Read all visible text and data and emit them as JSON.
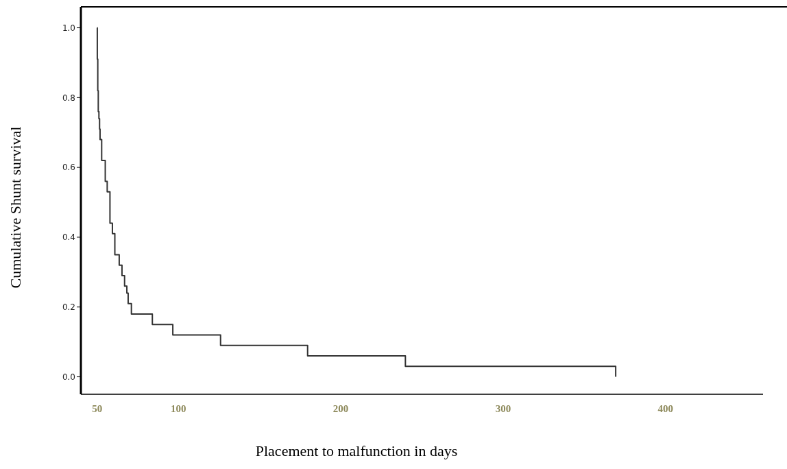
{
  "chart_data": {
    "type": "step",
    "xlabel": "Placement to malfunction in days",
    "ylabel": "Cumulative Shunt survival",
    "x": [
      50,
      50.1,
      50.4,
      50.7,
      51.1,
      51.5,
      51.8,
      52.8,
      55.0,
      56.2,
      57.9,
      59.4,
      60.9,
      63.6,
      65.3,
      66.9,
      68.3,
      69.1,
      71.1,
      84.0,
      96.6,
      126,
      179.6,
      239.8,
      369.3
    ],
    "series": [
      {
        "color": "#333333",
        "values": [
          1,
          0.91,
          0.82,
          0.76,
          0.74,
          0.71,
          0.68,
          0.62,
          0.56,
          0.53,
          0.44,
          0.41,
          0.35,
          0.32,
          0.29,
          0.26,
          0.24,
          0.21,
          0.18,
          0.15,
          0.12,
          0.09,
          0.06,
          0.03,
          0
        ]
      }
    ],
    "xlim": [
      40,
      460
    ],
    "xticks": [
      50,
      100,
      200,
      300,
      400
    ],
    "ylim": [
      -0.05,
      1.06
    ],
    "yticks": [
      {
        "value": 0,
        "label": "0.0"
      },
      {
        "value": 0.2,
        "label": "0.2"
      },
      {
        "value": 0.4,
        "label": "0.4"
      },
      {
        "value": 0.6,
        "label": "0.6"
      },
      {
        "value": 0.8,
        "label": "0.8"
      },
      {
        "value": 1,
        "label": "1.0"
      }
    ],
    "grid": false,
    "marker": "none",
    "line_style": "solid"
  }
}
